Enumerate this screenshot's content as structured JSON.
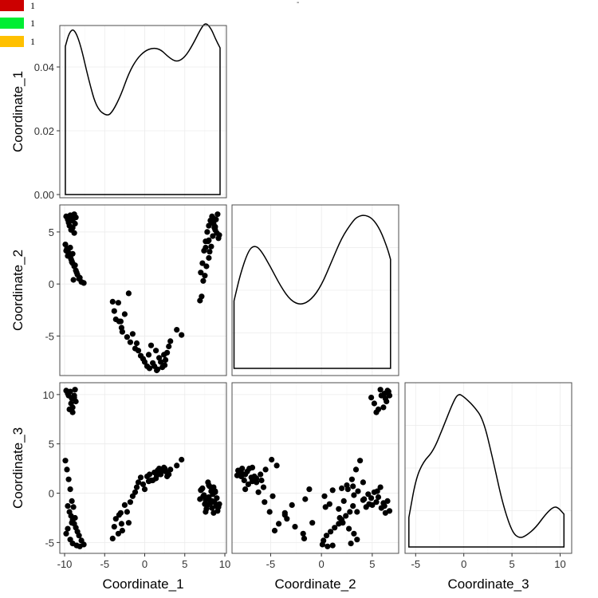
{
  "legend": {
    "items": [
      {
        "label": "1",
        "color": "#cc0000"
      },
      {
        "label": "1",
        "color": "#00ee33"
      },
      {
        "label": "1",
        "color": "#ffc000"
      }
    ]
  },
  "top_mark": "-",
  "chart_data": {
    "type": "scatter-matrix",
    "variables": [
      "Coordinate_1",
      "Coordinate_2",
      "Coordinate_3"
    ],
    "ranges": {
      "Coordinate_1": [
        -10.6,
        10.2
      ],
      "Coordinate_2": [
        -8.8,
        7.6
      ],
      "Coordinate_3": [
        -6.1,
        11.2
      ],
      "density_y": [
        -0.001,
        0.053
      ]
    },
    "ticks": {
      "Coordinate_1": [
        -10,
        -5,
        0,
        5,
        10
      ],
      "Coordinate_2": [
        -5,
        0,
        5
      ],
      "Coordinate_3": [
        -5,
        0,
        5,
        10
      ],
      "density_y": [
        0.0,
        0.02,
        0.04
      ]
    },
    "tick_labels": {
      "Coordinate_1": [
        "-10",
        "-5",
        "0",
        "5",
        "10"
      ],
      "Coordinate_2": [
        "-5",
        "0",
        "5"
      ],
      "Coordinate_3": [
        "-5",
        "0",
        "5",
        "10"
      ],
      "density_y": [
        "0.00",
        "0.02",
        "0.04"
      ]
    },
    "densities": {
      "Coordinate_1": [
        [
          -9.9,
          0.0465
        ],
        [
          -9.4,
          0.051
        ],
        [
          -8.8,
          0.052
        ],
        [
          -8,
          0.047
        ],
        [
          -7,
          0.036
        ],
        [
          -6,
          0.027
        ],
        [
          -4.7,
          0.0245
        ],
        [
          -4,
          0.026
        ],
        [
          -3,
          0.031
        ],
        [
          -2,
          0.038
        ],
        [
          -1,
          0.0425
        ],
        [
          0,
          0.045
        ],
        [
          1,
          0.046
        ],
        [
          2,
          0.0455
        ],
        [
          3,
          0.043
        ],
        [
          4,
          0.0415
        ],
        [
          5,
          0.043
        ],
        [
          6,
          0.047
        ],
        [
          7,
          0.052
        ],
        [
          7.6,
          0.054
        ],
        [
          8.3,
          0.052
        ],
        [
          8.8,
          0.049
        ],
        [
          9.4,
          0.046
        ]
      ],
      "Coordinate_2": [
        [
          -8.6,
          0.31
        ],
        [
          -8,
          0.43
        ],
        [
          -7.2,
          0.54
        ],
        [
          -6.6,
          0.565
        ],
        [
          -6,
          0.545
        ],
        [
          -5,
          0.465
        ],
        [
          -4,
          0.375
        ],
        [
          -3,
          0.31
        ],
        [
          -2,
          0.29
        ],
        [
          -1,
          0.315
        ],
        [
          0,
          0.38
        ],
        [
          1,
          0.49
        ],
        [
          2,
          0.6
        ],
        [
          3,
          0.67
        ],
        [
          3.5,
          0.695
        ],
        [
          4.2,
          0.705
        ],
        [
          5,
          0.69
        ],
        [
          5.8,
          0.635
        ],
        [
          6.5,
          0.55
        ],
        [
          6.8,
          0.5
        ]
      ],
      "Coordinate_3": [
        [
          -5.7,
          0.18
        ],
        [
          -5,
          0.41
        ],
        [
          -4.2,
          0.52
        ],
        [
          -3.2,
          0.58
        ],
        [
          -2.2,
          0.72
        ],
        [
          -1.2,
          0.87
        ],
        [
          -0.6,
          0.935
        ],
        [
          0,
          0.915
        ],
        [
          1,
          0.86
        ],
        [
          2,
          0.78
        ],
        [
          3,
          0.54
        ],
        [
          4,
          0.27
        ],
        [
          5,
          0.09
        ],
        [
          5.8,
          0.052
        ],
        [
          6.5,
          0.07
        ],
        [
          7.5,
          0.12
        ],
        [
          8.5,
          0.2
        ],
        [
          9.3,
          0.245
        ],
        [
          9.8,
          0.24
        ],
        [
          10.4,
          0.2
        ]
      ]
    },
    "points": {
      "x1": [
        -9.8,
        -9.6,
        -9.5,
        -9.3,
        -9.1,
        -9,
        -8.8,
        -8.6,
        -9.4,
        -9.2,
        -9,
        -8.8,
        -8.7,
        -9.9,
        -9.7,
        -9.5,
        -9.3,
        -9.1,
        -9.6,
        -9.4,
        -9.2,
        -9,
        -8.8,
        -8.6,
        -8.4,
        -8.2,
        -7.9,
        -7.6,
        -8.1,
        -8.5,
        -9,
        -9.3,
        -9.8,
        -9.6,
        -9.1,
        -8.7,
        -8.9,
        -4,
        -3.8,
        -3.6,
        -3.3,
        -3,
        -2.8,
        -2.5,
        -2.2,
        -2,
        -1.8,
        -1.5,
        -1.2,
        -1,
        -0.8,
        -0.5,
        -0.2,
        0,
        0.3,
        0.6,
        1,
        1.2,
        1.5,
        1.8,
        2,
        2.2,
        2.4,
        2.6,
        2.8,
        3,
        3.2,
        4,
        4.6,
        1.4,
        0.8,
        0.5,
        1.6,
        2.5,
        -3.2,
        -2.9,
        7,
        7.2,
        7.4,
        7.6,
        7.8,
        8,
        8.2,
        8.4,
        8.6,
        8.8,
        9,
        9.2,
        7.5,
        7.7,
        8,
        8.3,
        8.5,
        8.7,
        8.9,
        9.1,
        7.9,
        8.1,
        8.4,
        8.6,
        7.3,
        7.1,
        6.9,
        8.8,
        9.3,
        8,
        7.6
      ],
      "x2": [
        -9.8,
        -9.6,
        -9.5,
        -9.3,
        -9.1,
        -9,
        -8.8,
        -8.6,
        -9.4,
        -9.2,
        -9,
        -8.8,
        -8.7,
        -9.9,
        -9.7,
        -9.5,
        -9.3,
        -9.1,
        -9.6,
        -9.4,
        -9.2,
        -9,
        -8.8,
        -8.6,
        -8.4,
        -8.2,
        -7.9,
        -7.6,
        -8.1,
        -8.5,
        -9,
        -9.3,
        -9.8,
        -9.6,
        -9.1,
        -8.7,
        -8.9,
        -4,
        -3.8,
        -3.6,
        -3.3,
        -3,
        -2.8,
        -2.5,
        -2.2,
        -2,
        -1.8,
        -1.5,
        -1.2,
        -1,
        -0.8,
        -0.5,
        -0.2,
        0,
        0.3,
        0.6,
        1,
        1.2,
        1.5,
        1.8,
        2,
        2.2,
        2.4,
        2.6,
        2.8,
        3,
        3.2,
        4,
        4.6,
        1.4,
        0.8,
        0.5,
        1.6,
        2.5,
        -3.2,
        -2.9,
        7,
        7.2,
        7.4,
        7.6,
        7.8,
        8,
        8.2,
        8.4,
        8.6,
        8.8,
        9,
        9.2,
        7.5,
        7.7,
        8,
        8.3,
        8.5,
        8.7,
        8.9,
        9.1,
        7.9,
        8.1,
        8.4,
        8.6,
        7.3,
        7.1,
        6.9,
        8.8,
        9.3,
        8,
        7.6
      ],
      "y2": [
        6.5,
        6.2,
        5.9,
        6.6,
        6.3,
        6.1,
        6.7,
        6.4,
        5.6,
        5.2,
        5.4,
        4.9,
        5.8,
        3.8,
        3.4,
        3,
        2.6,
        2.2,
        3.1,
        2.8,
        2.4,
        2,
        1.7,
        1.3,
        0.9,
        0.5,
        0.2,
        0.1,
        0.6,
        1.1,
        2.9,
        3.5,
        3.2,
        2.7,
        2.1,
        1.8,
        0.4,
        -1.7,
        -2.6,
        -3.4,
        -1.8,
        -3.6,
        -4.6,
        -2.9,
        -5.1,
        -0.9,
        -5.6,
        -4.8,
        -6.2,
        -5.7,
        -6.4,
        -6.9,
        -7.2,
        -7.5,
        -7.9,
        -8.1,
        -7.6,
        -7.9,
        -8.3,
        -7.1,
        -7.5,
        -8,
        -6.8,
        -7.3,
        -6.6,
        -6,
        -5.5,
        -4.4,
        -4.9,
        -6.4,
        -5.9,
        -6.8,
        -8.2,
        -7.8,
        -3.6,
        -4.2,
        1.1,
        2,
        3.2,
        4.1,
        5,
        5.6,
        6.1,
        6.5,
        5.8,
        5.2,
        4.9,
        4.4,
        0.8,
        1.7,
        2.5,
        3.6,
        4.6,
        5.4,
        6.2,
        6.7,
        4.1,
        3.1,
        5.9,
        6.3,
        0.3,
        -1.2,
        -1.6,
        5.5,
        4.7,
        4.2,
        3.5
      ],
      "y3": [
        10.4,
        10.1,
        9.9,
        10.3,
        9.6,
        8.7,
        9.9,
        9.3,
        8.5,
        9.1,
        8.2,
        9.7,
        10.5,
        3.3,
        2.4,
        1.4,
        0.4,
        -0.8,
        -1.3,
        -1.9,
        -2.3,
        -2.7,
        -3.1,
        -3.5,
        -3.9,
        -4.3,
        -4.8,
        -5.2,
        -5.4,
        -5.3,
        -5.1,
        -4.7,
        -4.1,
        -3.6,
        -3,
        -2.5,
        -1.4,
        -4.6,
        -3.4,
        -2.6,
        -4.1,
        -2,
        -3.8,
        -1.2,
        -1.9,
        -3,
        -0.9,
        -0.3,
        0.1,
        0.6,
        1.1,
        1.6,
        0.9,
        0.4,
        1.7,
        1.9,
        1.3,
        2.1,
        1.8,
        2.5,
        1.9,
        2.3,
        2.6,
        2.2,
        1.7,
        1.9,
        2.4,
        2.8,
        3.4,
        1.5,
        1.3,
        1.2,
        2.3,
        2.5,
        -2.2,
        -3.1,
        0.3,
        0.5,
        -0.2,
        -0.7,
        -1.2,
        -0.4,
        -1,
        -0.8,
        0.6,
        0.1,
        -0.5,
        -1.4,
        -1.1,
        -1.6,
        0.8,
        0.2,
        -0.1,
        -0.9,
        -1.3,
        -1.8,
        1.1,
        0.7,
        -1.5,
        -2,
        -0.3,
        0.4,
        -0.6,
        0.2,
        -1.1,
        -0.6,
        -1.9
      ]
    }
  }
}
